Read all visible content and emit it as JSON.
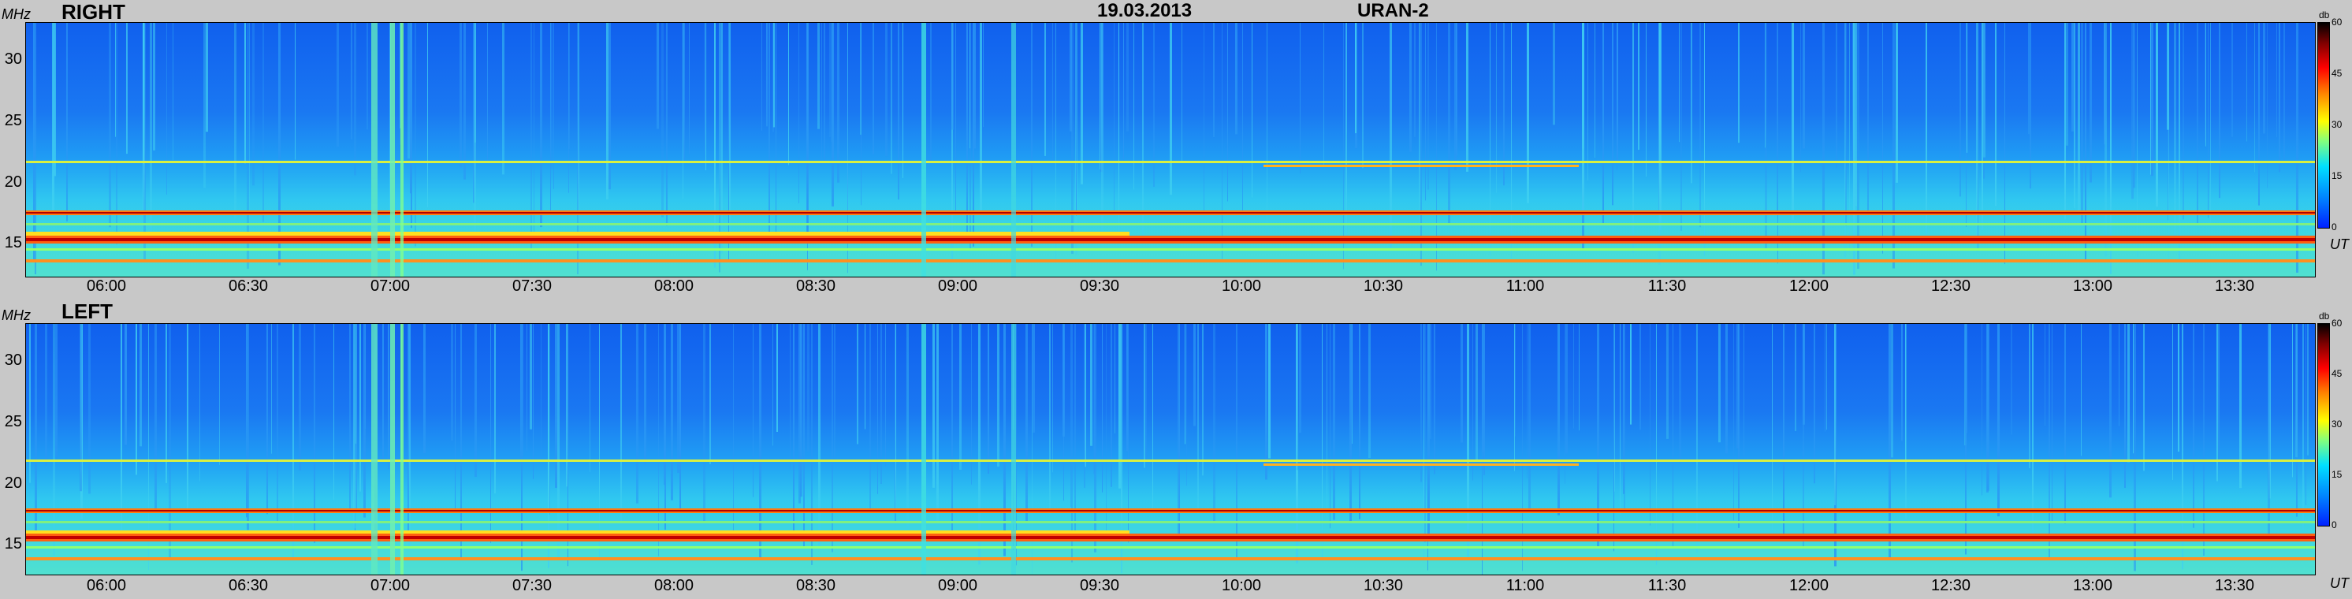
{
  "header": {
    "date": "19.03.2013",
    "instrument": "URAN-2"
  },
  "labels": {
    "y_unit": "MHz",
    "x_unit": "UT",
    "colorbar_unit": "db"
  },
  "panels": [
    {
      "label": "RIGHT"
    },
    {
      "label": "LEFT"
    }
  ],
  "chart_data": {
    "type": "heatmap",
    "title": "",
    "x_axis": {
      "label": "UT",
      "range": [
        "05:45",
        "13:52"
      ],
      "ticks": [
        "06:00",
        "06:30",
        "07:00",
        "07:30",
        "08:00",
        "08:30",
        "09:00",
        "09:30",
        "10:00",
        "10:30",
        "11:00",
        "11:30",
        "12:00",
        "12:30",
        "13:00",
        "13:30"
      ]
    },
    "y_axis": {
      "label": "MHz",
      "range": [
        12,
        33
      ],
      "ticks": [
        "30",
        "25",
        "20",
        "15"
      ]
    },
    "colorbar": {
      "label": "db",
      "range": [
        0,
        60
      ],
      "ticks": [
        "60",
        "45",
        "30",
        "15",
        "0"
      ],
      "colors": [
        "#0020ff",
        "#0080ff",
        "#00e0ff",
        "#80ff80",
        "#ffff00",
        "#ff8000",
        "#ff0000",
        "#800000",
        "#000000"
      ]
    },
    "panels": [
      "RIGHT",
      "LEFT"
    ],
    "bands": [
      {
        "freq_mhz": 15.7,
        "level_db": 48
      },
      {
        "freq_mhz": 17.8,
        "level_db": 40
      },
      {
        "freq_mhz": 13.7,
        "level_db": 38
      },
      {
        "freq_mhz": 21.5,
        "level_db": 30
      }
    ],
    "bright_intervals_ut": [
      "07:00",
      "07:03",
      "09:18"
    ]
  }
}
